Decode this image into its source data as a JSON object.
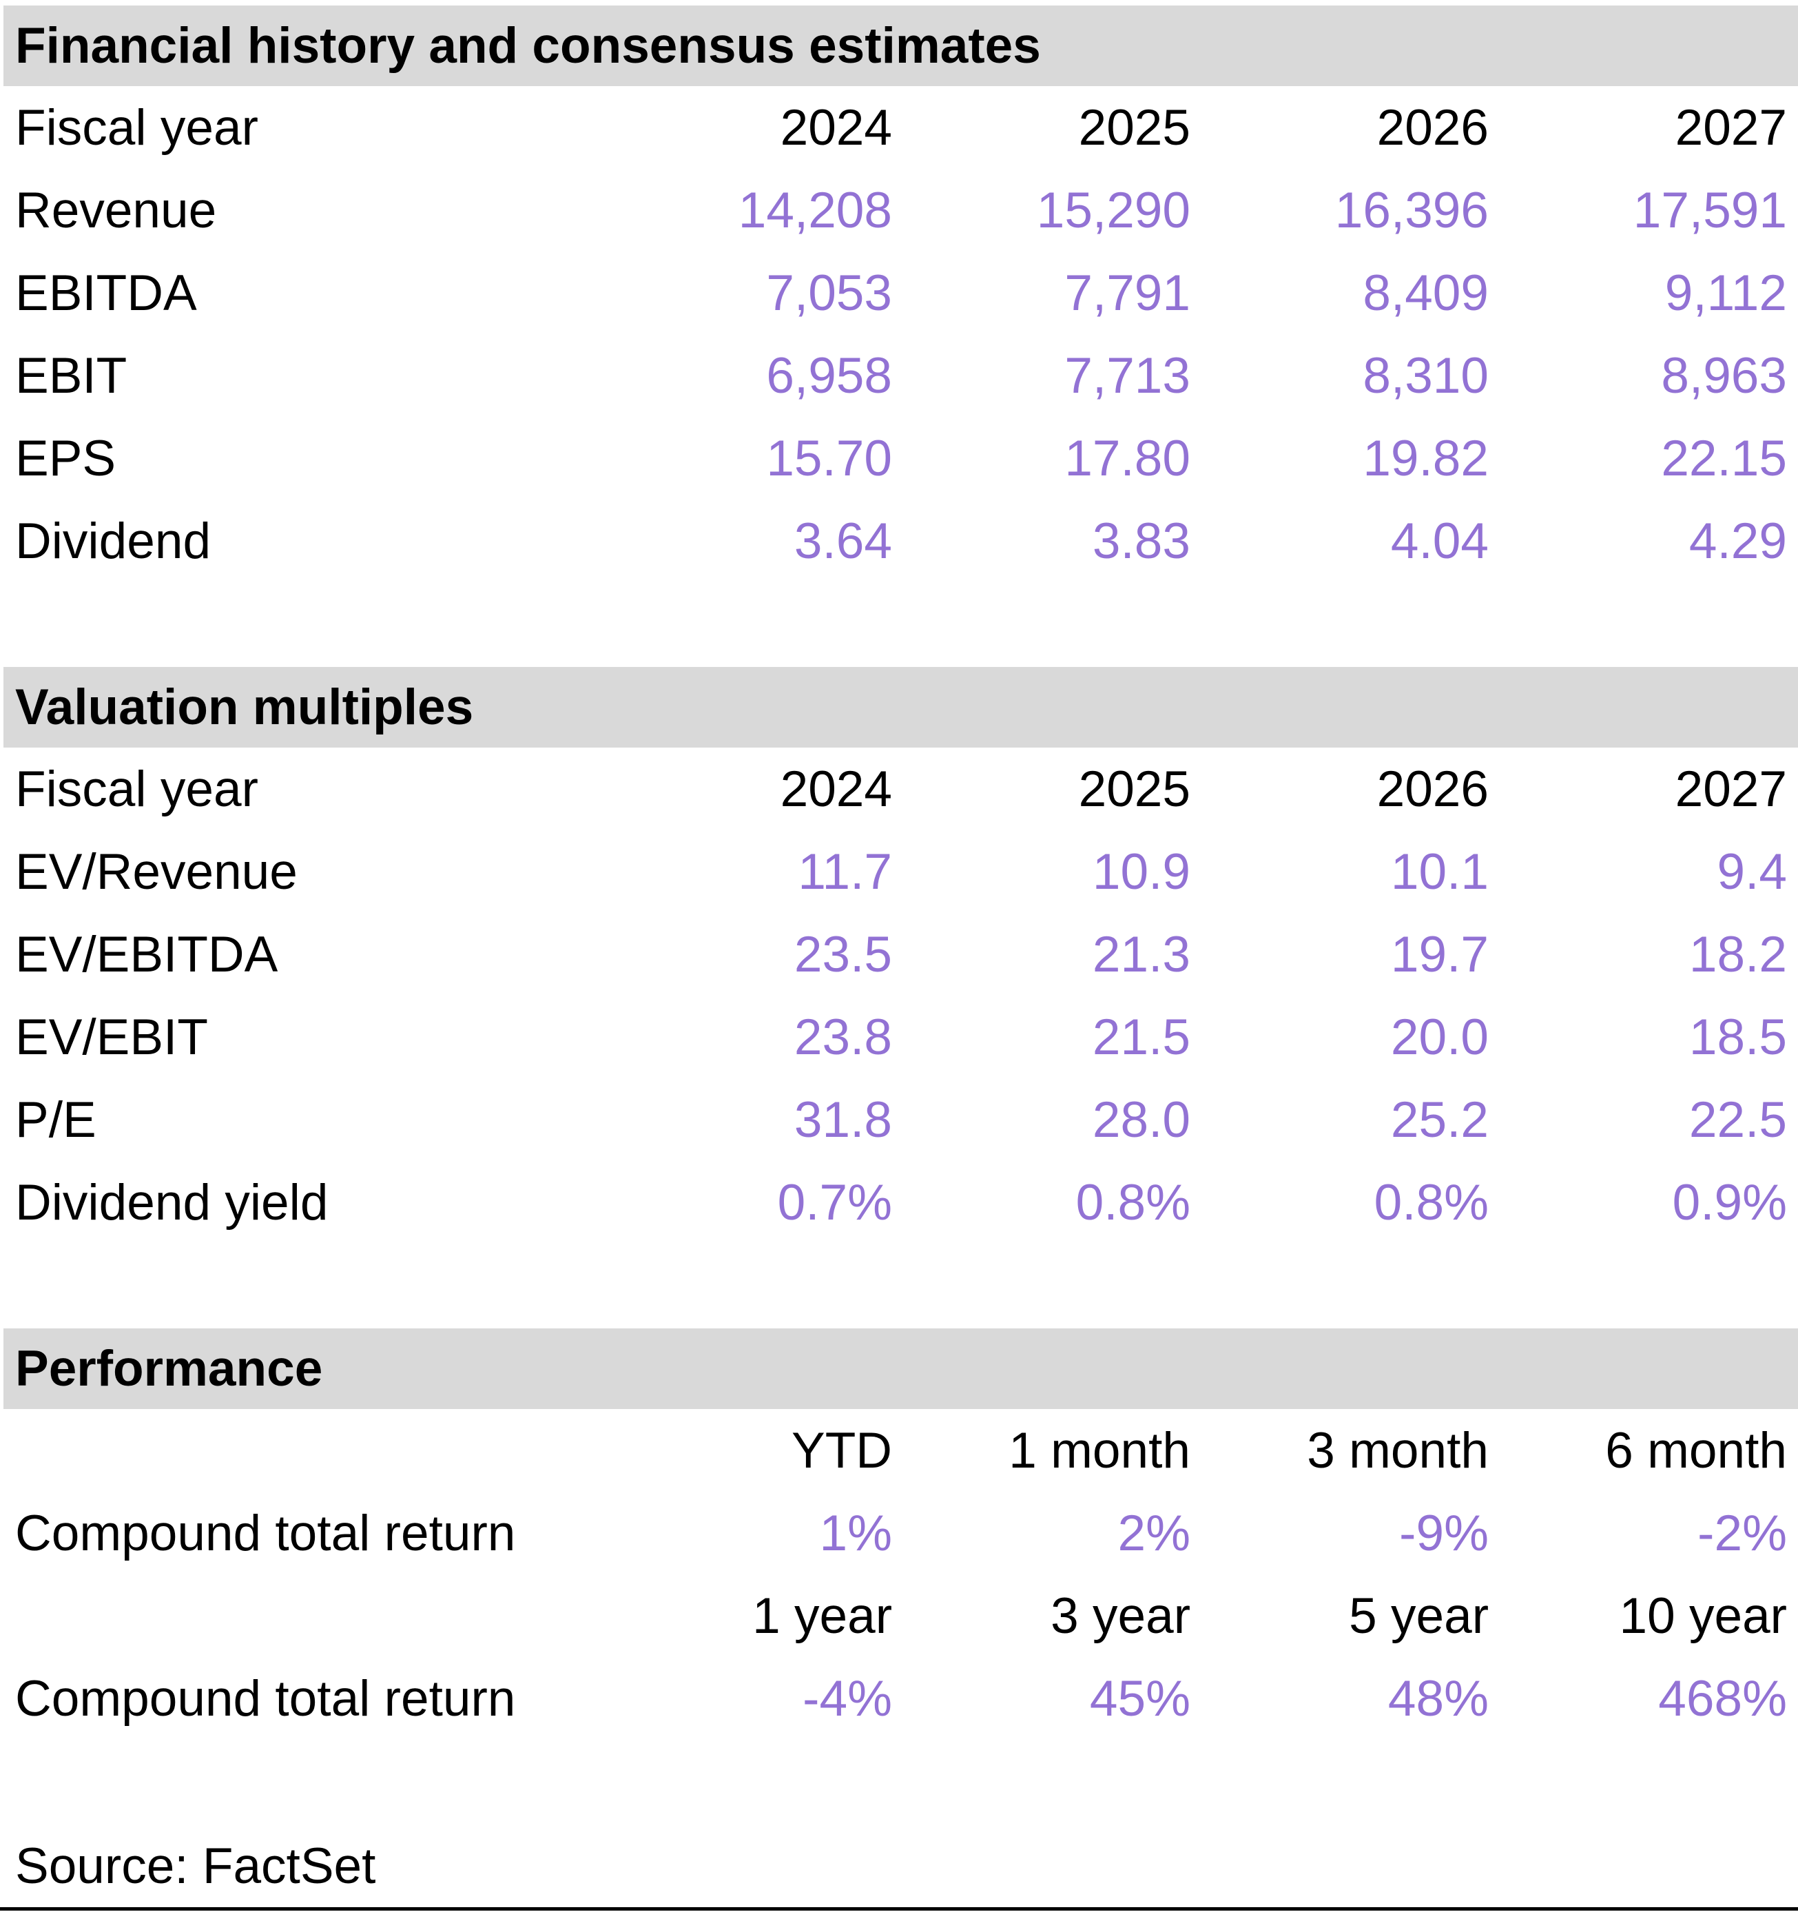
{
  "colors": {
    "value_accent": "#9272D4",
    "section_band": "#D9D9D9"
  },
  "sections": [
    {
      "title": "Financial history and consensus estimates",
      "header": {
        "label": "Fiscal year",
        "cols": [
          "2024",
          "2025",
          "2026",
          "2027"
        ]
      },
      "rows": [
        {
          "label": "Revenue",
          "values": [
            "14,208",
            "15,290",
            "16,396",
            "17,591"
          ]
        },
        {
          "label": "EBITDA",
          "values": [
            "7,053",
            "7,791",
            "8,409",
            "9,112"
          ]
        },
        {
          "label": "EBIT",
          "values": [
            "6,958",
            "7,713",
            "8,310",
            "8,963"
          ]
        },
        {
          "label": "EPS",
          "values": [
            "15.70",
            "17.80",
            "19.82",
            "22.15"
          ]
        },
        {
          "label": "Dividend",
          "values": [
            "3.64",
            "3.83",
            "4.04",
            "4.29"
          ]
        }
      ]
    },
    {
      "title": "Valuation multiples",
      "header": {
        "label": "Fiscal year",
        "cols": [
          "2024",
          "2025",
          "2026",
          "2027"
        ]
      },
      "rows": [
        {
          "label": "EV/Revenue",
          "values": [
            "11.7",
            "10.9",
            "10.1",
            "9.4"
          ]
        },
        {
          "label": "EV/EBITDA",
          "values": [
            "23.5",
            "21.3",
            "19.7",
            "18.2"
          ]
        },
        {
          "label": "EV/EBIT",
          "values": [
            "23.8",
            "21.5",
            "20.0",
            "18.5"
          ]
        },
        {
          "label": "P/E",
          "values": [
            "31.8",
            "28.0",
            "25.2",
            "22.5"
          ]
        },
        {
          "label": "Dividend yield",
          "values": [
            "0.7%",
            "0.8%",
            "0.8%",
            "0.9%"
          ]
        }
      ]
    },
    {
      "title": "Performance",
      "blocks": [
        {
          "periods": [
            "YTD",
            "1 month",
            "3 month",
            "6 month"
          ],
          "row": {
            "label": "Compound total return",
            "values": [
              "1%",
              "2%",
              "-9%",
              "-2%"
            ]
          }
        },
        {
          "periods": [
            "1 year",
            "3 year",
            "5 year",
            "10 year"
          ],
          "row": {
            "label": "Compound total return",
            "values": [
              "-4%",
              "45%",
              "48%",
              "468%"
            ]
          }
        }
      ]
    }
  ],
  "source": "Source: FactSet"
}
